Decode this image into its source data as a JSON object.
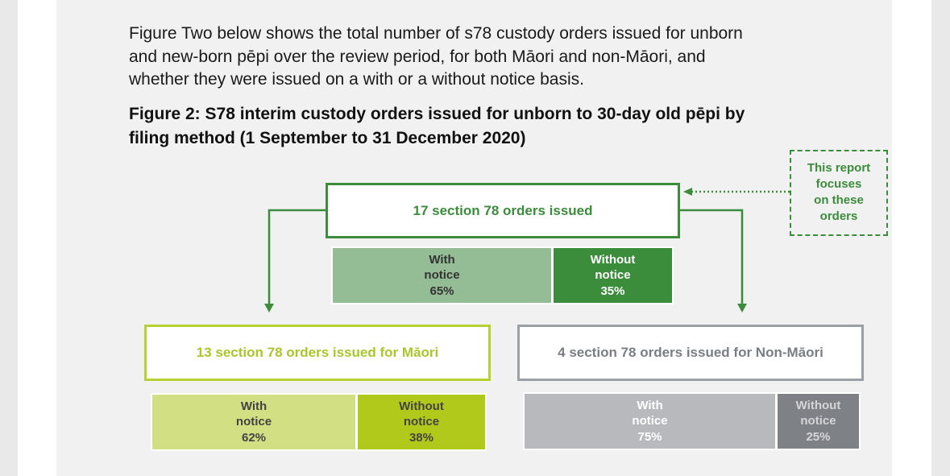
{
  "intro": {
    "lines": [
      "Figure Two below shows the total number of s78 custody orders issued for unborn",
      "and new-born pēpi over the review period, for both Māori and non-Māori, and",
      "whether they were issued on a with or a without notice basis."
    ]
  },
  "figure": {
    "caption_lines": [
      "Figure 2: S78 interim custody orders issued for unborn to 30-day old pēpi by",
      "filing method (1 September to 31 December 2020)"
    ]
  },
  "diagram": {
    "total": {
      "label": "17 section 78 orders issued",
      "with": [
        "With",
        "notice",
        "65%"
      ],
      "without": [
        "Without",
        "notice",
        "35%"
      ]
    },
    "maori": {
      "label": "13 section 78 orders issued for Māori",
      "with": [
        "With",
        "notice",
        "62%"
      ],
      "without": [
        "Without",
        "notice",
        "38%"
      ]
    },
    "non_maori": {
      "label": "4 section 78 orders issued for Non-Māori",
      "with": [
        "With",
        "notice",
        "75%"
      ],
      "without": [
        "Without",
        "notice",
        "25%"
      ]
    },
    "note": [
      "This report",
      "focuses",
      "on these",
      "orders"
    ]
  },
  "colors": {
    "dark_green": "#3b8c3b",
    "light_green": "#95bd95",
    "lime_border": "#b5d230",
    "lime_light": "#d2df82",
    "lime_dark": "#b1c91b",
    "grey_border": "#9aa0a6",
    "grey_light": "#b7b9bc",
    "grey_dark": "#7e8185"
  }
}
